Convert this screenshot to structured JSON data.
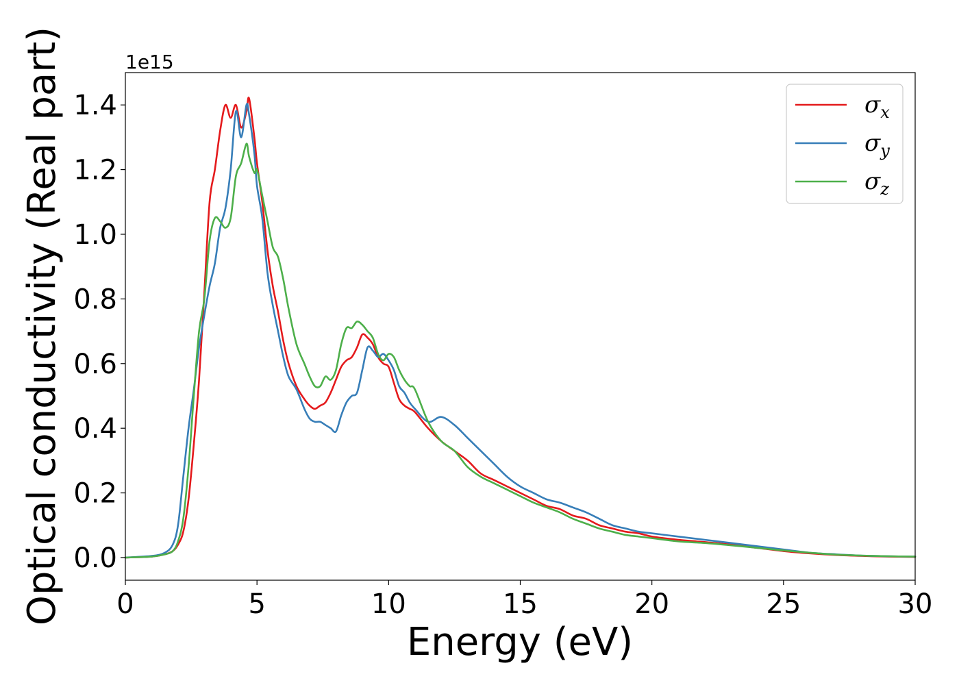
{
  "chart_data": {
    "type": "line",
    "xlabel": "Energy (eV)",
    "ylabel": "Optical conductivity (Real part)",
    "y_offset_label": "1e15",
    "xlim": [
      0,
      30
    ],
    "ylim": [
      -0.07,
      1.5
    ],
    "x_ticks": [
      "0",
      "5",
      "10",
      "15",
      "20",
      "25",
      "30"
    ],
    "y_ticks": [
      "0.0",
      "0.2",
      "0.4",
      "0.6",
      "0.8",
      "1.0",
      "1.2",
      "1.4"
    ],
    "grid": false,
    "legend_position": "top-right",
    "series": [
      {
        "name": "σx",
        "legend_base": "σ",
        "legend_sub": "x",
        "color": "#e41a1c",
        "x": [
          0,
          1,
          1.5,
          1.8,
          2.0,
          2.2,
          2.4,
          2.6,
          2.8,
          3.0,
          3.2,
          3.4,
          3.6,
          3.8,
          4.0,
          4.2,
          4.4,
          4.6,
          4.7,
          4.9,
          5.0,
          5.2,
          5.4,
          5.6,
          5.8,
          6.0,
          6.2,
          6.5,
          6.8,
          7.0,
          7.2,
          7.4,
          7.6,
          7.8,
          8.0,
          8.2,
          8.4,
          8.6,
          8.8,
          9.0,
          9.2,
          9.4,
          9.6,
          9.8,
          10.0,
          10.2,
          10.4,
          10.6,
          10.8,
          11.0,
          11.5,
          12.0,
          12.5,
          13.0,
          13.5,
          14.0,
          14.5,
          15.0,
          15.5,
          16.0,
          16.5,
          17.0,
          17.5,
          18.0,
          18.5,
          19.0,
          19.5,
          20.0,
          21.0,
          22.0,
          23.0,
          24.0,
          25.0,
          26.0,
          27.0,
          28.0,
          29.0,
          30.0
        ],
        "y": [
          0.0,
          0.003,
          0.01,
          0.02,
          0.04,
          0.08,
          0.18,
          0.35,
          0.55,
          0.82,
          1.1,
          1.2,
          1.32,
          1.4,
          1.36,
          1.4,
          1.33,
          1.38,
          1.42,
          1.3,
          1.22,
          1.1,
          0.95,
          0.84,
          0.76,
          0.67,
          0.6,
          0.53,
          0.49,
          0.47,
          0.46,
          0.47,
          0.48,
          0.51,
          0.55,
          0.59,
          0.61,
          0.62,
          0.65,
          0.69,
          0.68,
          0.66,
          0.62,
          0.6,
          0.59,
          0.54,
          0.49,
          0.47,
          0.46,
          0.45,
          0.4,
          0.36,
          0.33,
          0.3,
          0.26,
          0.24,
          0.22,
          0.2,
          0.18,
          0.16,
          0.15,
          0.13,
          0.12,
          0.1,
          0.09,
          0.08,
          0.075,
          0.065,
          0.055,
          0.048,
          0.04,
          0.03,
          0.02,
          0.013,
          0.008,
          0.005,
          0.003,
          0.002
        ]
      },
      {
        "name": "σy",
        "legend_base": "σ",
        "legend_sub": "y",
        "color": "#377eb8",
        "x": [
          0,
          1,
          1.5,
          1.8,
          2.0,
          2.2,
          2.4,
          2.6,
          2.8,
          3.0,
          3.2,
          3.4,
          3.6,
          3.8,
          4.0,
          4.2,
          4.4,
          4.6,
          4.7,
          4.9,
          5.0,
          5.2,
          5.4,
          5.6,
          5.8,
          6.0,
          6.2,
          6.5,
          6.8,
          7.0,
          7.2,
          7.4,
          7.6,
          7.8,
          8.0,
          8.2,
          8.4,
          8.6,
          8.8,
          9.0,
          9.2,
          9.4,
          9.6,
          9.8,
          10.0,
          10.2,
          10.4,
          10.6,
          10.8,
          11.0,
          11.5,
          12.0,
          12.5,
          13.0,
          13.5,
          14.0,
          14.5,
          15.0,
          15.5,
          16.0,
          16.5,
          17.0,
          17.5,
          18.0,
          18.5,
          19.0,
          19.5,
          20.0,
          21.0,
          22.0,
          23.0,
          24.0,
          25.0,
          26.0,
          27.0,
          28.0,
          29.0,
          30.0
        ],
        "y": [
          0.0,
          0.005,
          0.015,
          0.04,
          0.1,
          0.25,
          0.4,
          0.52,
          0.65,
          0.75,
          0.84,
          0.91,
          1.02,
          1.08,
          1.2,
          1.38,
          1.3,
          1.4,
          1.37,
          1.25,
          1.15,
          1.05,
          0.88,
          0.78,
          0.7,
          0.62,
          0.56,
          0.52,
          0.46,
          0.43,
          0.42,
          0.42,
          0.41,
          0.4,
          0.39,
          0.44,
          0.48,
          0.5,
          0.51,
          0.58,
          0.65,
          0.64,
          0.62,
          0.63,
          0.61,
          0.58,
          0.53,
          0.51,
          0.48,
          0.46,
          0.42,
          0.435,
          0.41,
          0.37,
          0.33,
          0.29,
          0.25,
          0.22,
          0.2,
          0.18,
          0.17,
          0.155,
          0.14,
          0.12,
          0.1,
          0.09,
          0.08,
          0.075,
          0.065,
          0.055,
          0.045,
          0.035,
          0.025,
          0.015,
          0.01,
          0.006,
          0.004,
          0.003
        ]
      },
      {
        "name": "σz",
        "legend_base": "σ",
        "legend_sub": "z",
        "color": "#4daf4a",
        "x": [
          0,
          1,
          1.5,
          1.8,
          2.0,
          2.2,
          2.4,
          2.6,
          2.8,
          3.0,
          3.2,
          3.4,
          3.6,
          3.8,
          4.0,
          4.2,
          4.4,
          4.6,
          4.7,
          4.9,
          5.0,
          5.2,
          5.4,
          5.6,
          5.8,
          6.0,
          6.2,
          6.5,
          6.8,
          7.0,
          7.2,
          7.4,
          7.6,
          7.8,
          8.0,
          8.2,
          8.4,
          8.6,
          8.8,
          9.0,
          9.2,
          9.4,
          9.6,
          9.8,
          10.0,
          10.2,
          10.4,
          10.6,
          10.8,
          11.0,
          11.5,
          12.0,
          12.5,
          13.0,
          13.5,
          14.0,
          14.5,
          15.0,
          15.5,
          16.0,
          16.5,
          17.0,
          17.5,
          18.0,
          18.5,
          19.0,
          19.5,
          20.0,
          21.0,
          22.0,
          23.0,
          24.0,
          25.0,
          26.0,
          27.0,
          28.0,
          29.0,
          30.0
        ],
        "y": [
          0.0,
          0.003,
          0.01,
          0.02,
          0.05,
          0.12,
          0.28,
          0.5,
          0.7,
          0.8,
          0.98,
          1.05,
          1.04,
          1.02,
          1.05,
          1.18,
          1.22,
          1.28,
          1.24,
          1.19,
          1.2,
          1.12,
          1.04,
          0.96,
          0.93,
          0.86,
          0.77,
          0.66,
          0.6,
          0.56,
          0.53,
          0.53,
          0.56,
          0.55,
          0.58,
          0.66,
          0.71,
          0.71,
          0.73,
          0.72,
          0.7,
          0.68,
          0.63,
          0.61,
          0.63,
          0.62,
          0.58,
          0.55,
          0.53,
          0.52,
          0.42,
          0.36,
          0.33,
          0.28,
          0.25,
          0.23,
          0.21,
          0.19,
          0.17,
          0.155,
          0.14,
          0.12,
          0.105,
          0.09,
          0.08,
          0.07,
          0.065,
          0.06,
          0.05,
          0.045,
          0.038,
          0.03,
          0.022,
          0.015,
          0.009,
          0.006,
          0.004,
          0.003
        ]
      }
    ]
  }
}
